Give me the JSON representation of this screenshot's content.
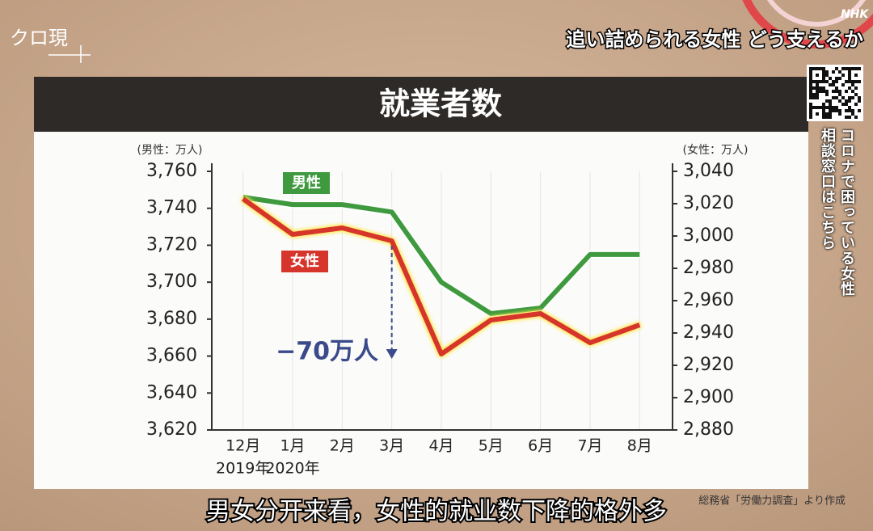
{
  "program": "クロ現",
  "headline": "追い詰められる女性  どう支えるか",
  "channel": "NHK",
  "side_notice": [
    "コロナで困っている女性",
    "相談窓口はこちら"
  ],
  "source": "総務省「労働力調査」より作成",
  "caption": "男女分开来看，女性的就业数下降的格外多",
  "chart_data": {
    "type": "line",
    "title": "就業者数",
    "ylabel": "(男性：万人)",
    "y2label": "(女性：万人)",
    "categories": [
      "12月",
      "1月",
      "2月",
      "3月",
      "4月",
      "5月",
      "6月",
      "7月",
      "8月"
    ],
    "year_labels": [
      "2019年",
      "2020年",
      null,
      null,
      null,
      null,
      null,
      null,
      null
    ],
    "series": [
      {
        "name": "男性",
        "color": "#3f9a3f",
        "values": [
          3746,
          3742,
          3742,
          3738,
          3700,
          3683,
          3686,
          3715,
          3715
        ]
      },
      {
        "name": "女性",
        "color": "#d6352b",
        "axis": "y2",
        "values": [
          3023,
          3001,
          3005,
          2997,
          2927,
          2948,
          2952,
          2934,
          2945
        ]
      }
    ],
    "ylim": [
      3620,
      3760
    ],
    "yticks": [
      {
        "value": 3620,
        "label": "3,620"
      },
      {
        "value": 3640,
        "label": "3,640"
      },
      {
        "value": 3660,
        "label": "3,660"
      },
      {
        "value": 3680,
        "label": "3,680"
      },
      {
        "value": 3700,
        "label": "3,700"
      },
      {
        "value": 3720,
        "label": "3,720"
      },
      {
        "value": 3740,
        "label": "3,740"
      },
      {
        "value": 3760,
        "label": "3,760"
      }
    ],
    "y2lim": [
      2880,
      3040
    ],
    "y2ticks": [
      {
        "value": 2880,
        "label": "2,880"
      },
      {
        "value": 2900,
        "label": "2,900"
      },
      {
        "value": 2920,
        "label": "2,920"
      },
      {
        "value": 2940,
        "label": "2,940"
      },
      {
        "value": 2960,
        "label": "2,960"
      },
      {
        "value": 2980,
        "label": "2,980"
      },
      {
        "value": 3000,
        "label": "3,000"
      },
      {
        "value": 3020,
        "label": "3,020"
      },
      {
        "value": 3040,
        "label": "3,040"
      }
    ],
    "annotation": "−70万人",
    "grid": true
  }
}
